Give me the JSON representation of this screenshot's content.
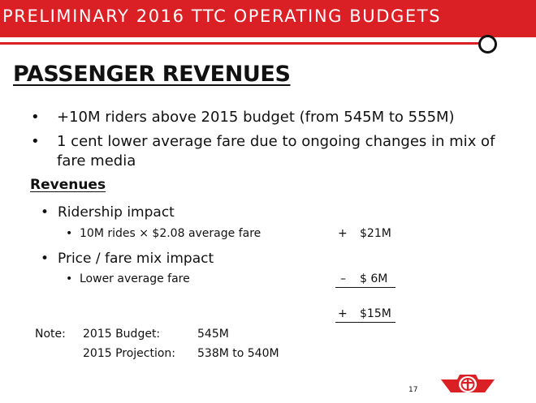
{
  "header": {
    "title": "PRELIMINARY 2016 TTC OPERATING BUDGETS",
    "bar_color": "#da1f25"
  },
  "slide": {
    "title": "PASSENGER REVENUES",
    "bullets": [
      {
        "line1": "+10M riders above 2015 budget (from 545M to 555M)",
        "line2": ""
      },
      {
        "line1": "1 cent lower average fare due to ongoing changes in mix of",
        "line2": "fare media"
      }
    ],
    "revenues": {
      "heading": "Revenues",
      "items": [
        {
          "label": "Ridership impact",
          "detail": "10M rides × $2.08 average fare",
          "sign": "+",
          "amount": "$21M"
        },
        {
          "label": "Price / fare mix impact",
          "detail": "Lower average fare",
          "sign": "–",
          "amount": "$ 6M"
        }
      ],
      "total": {
        "sign": "+",
        "amount": "$15M"
      }
    },
    "note": {
      "label": "Note:",
      "rows": [
        {
          "label": "2015 Budget:",
          "value": "545M"
        },
        {
          "label": "2015 Projection:",
          "value": "538M to 540M"
        }
      ]
    },
    "page_number": "17"
  },
  "logo": {
    "icon": "ttc-logo-icon",
    "color": "#da1f25"
  }
}
